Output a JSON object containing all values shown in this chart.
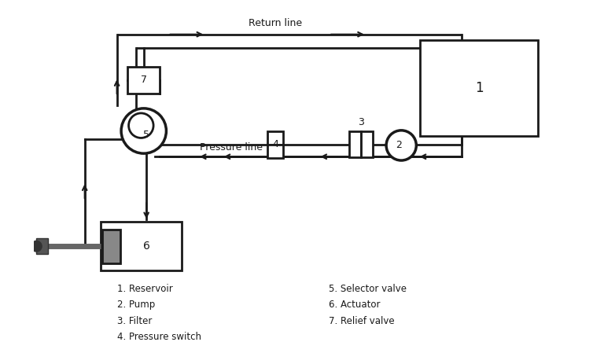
{
  "bg_color": "#ffffff",
  "line_color": "#1a1a1a",
  "lw": 2.0,
  "return_line_label": "Return line",
  "pressure_line_label": "Pressure line",
  "legend_left": [
    "1. Reservoir",
    "2. Pump",
    "3. Filter",
    "4. Pressure switch"
  ],
  "legend_right": [
    "5. Selector valve",
    "6. Actuator",
    "7. Relief valve"
  ],
  "xlim": [
    0,
    10
  ],
  "ylim": [
    0,
    6.5
  ]
}
